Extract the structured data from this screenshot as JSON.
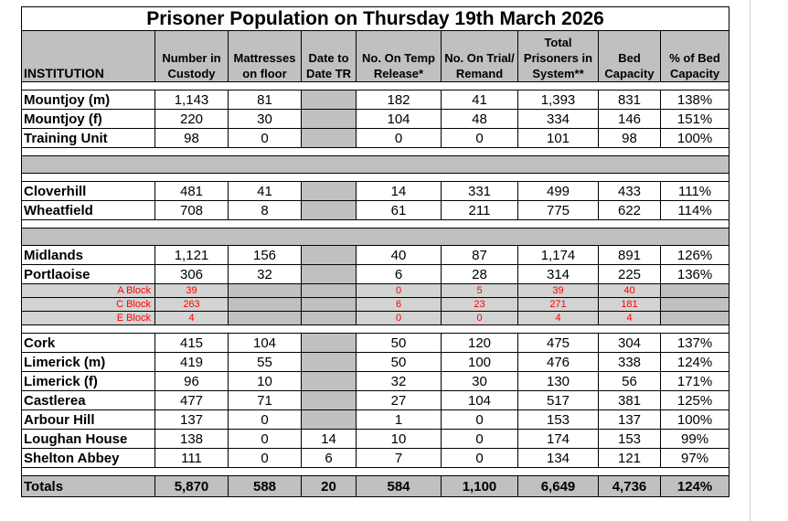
{
  "title": "Prisoner Population on Thursday 19th March 2026",
  "headers": {
    "institution": "INSTITUTION",
    "custody": [
      "Number in",
      "Custody"
    ],
    "mattresses": [
      "Mattresses",
      "on floor"
    ],
    "date_tr": [
      "Date to",
      "Date TR"
    ],
    "temp_release": [
      "No. On Temp",
      "Release*"
    ],
    "trial": [
      "No. On Trial/",
      "Remand"
    ],
    "total": [
      "Total",
      "Prisoners in",
      "System**"
    ],
    "bed": [
      "Bed",
      "Capacity"
    ],
    "pct": [
      "% of Bed",
      "Capacity"
    ]
  },
  "group1": [
    {
      "name": "Mountjoy (m)",
      "custody": "1,143",
      "mattresses": "81",
      "date_tr": "",
      "temp": "182",
      "trial": "41",
      "total": "1,393",
      "bed": "831",
      "pct": "138%"
    },
    {
      "name": "Mountjoy (f)",
      "custody": "220",
      "mattresses": "30",
      "date_tr": "",
      "temp": "104",
      "trial": "48",
      "total": "334",
      "bed": "146",
      "pct": "151%"
    },
    {
      "name": "Training Unit",
      "custody": "98",
      "mattresses": "0",
      "date_tr": "",
      "temp": "0",
      "trial": "0",
      "total": "101",
      "bed": "98",
      "pct": "100%"
    }
  ],
  "group2": [
    {
      "name": "Cloverhill",
      "custody": "481",
      "mattresses": "41",
      "date_tr": "",
      "temp": "14",
      "trial": "331",
      "total": "499",
      "bed": "433",
      "pct": "111%"
    },
    {
      "name": "Wheatfield",
      "custody": "708",
      "mattresses": "8",
      "date_tr": "",
      "temp": "61",
      "trial": "211",
      "total": "775",
      "bed": "622",
      "pct": "114%"
    }
  ],
  "group3": [
    {
      "name": "Midlands",
      "custody": "1,121",
      "mattresses": "156",
      "date_tr": "",
      "temp": "40",
      "trial": "87",
      "total": "1,174",
      "bed": "891",
      "pct": "126%"
    },
    {
      "name": "Portlaoise",
      "custody": "306",
      "mattresses": "32",
      "date_tr": "",
      "temp": "6",
      "trial": "28",
      "total": "314",
      "bed": "225",
      "pct": "136%"
    }
  ],
  "blocks": [
    {
      "name": "A Block",
      "custody": "39",
      "temp": "0",
      "trial": "5",
      "total": "39",
      "bed": "40"
    },
    {
      "name": "C Block",
      "custody": "263",
      "temp": "6",
      "trial": "23",
      "total": "271",
      "bed": "181"
    },
    {
      "name": "E Block",
      "custody": "4",
      "temp": "0",
      "trial": "0",
      "total": "4",
      "bed": "4"
    }
  ],
  "group4": [
    {
      "name": "Cork",
      "custody": "415",
      "mattresses": "104",
      "date_tr": "",
      "temp": "50",
      "trial": "120",
      "total": "475",
      "bed": "304",
      "pct": "137%"
    },
    {
      "name": "Limerick (m)",
      "custody": "419",
      "mattresses": "55",
      "date_tr": "",
      "temp": "50",
      "trial": "100",
      "total": "476",
      "bed": "338",
      "pct": "124%"
    },
    {
      "name": "Limerick (f)",
      "custody": "96",
      "mattresses": "10",
      "date_tr": "",
      "temp": "32",
      "trial": "30",
      "total": "130",
      "bed": "56",
      "pct": "171%"
    },
    {
      "name": "Castlerea",
      "custody": "477",
      "mattresses": "71",
      "date_tr": "",
      "temp": "27",
      "trial": "104",
      "total": "517",
      "bed": "381",
      "pct": "125%"
    },
    {
      "name": "Arbour Hill",
      "custody": "137",
      "mattresses": "0",
      "date_tr": "",
      "temp": "1",
      "trial": "0",
      "total": "153",
      "bed": "137",
      "pct": "100%"
    },
    {
      "name": "Loughan House",
      "custody": "138",
      "mattresses": "0",
      "date_tr": "14",
      "temp": "10",
      "trial": "0",
      "total": "174",
      "bed": "153",
      "pct": "99%"
    },
    {
      "name": "Shelton Abbey",
      "custody": "111",
      "mattresses": "0",
      "date_tr": "6",
      "temp": "7",
      "trial": "0",
      "total": "134",
      "bed": "121",
      "pct": "97%"
    }
  ],
  "totals": {
    "name": "Totals",
    "custody": "5,870",
    "mattresses": "588",
    "date_tr": "20",
    "temp": "584",
    "trial": "1,100",
    "total": "6,649",
    "bed": "4,736",
    "pct": "124%"
  },
  "colors": {
    "header_bg": "#c0c0c0",
    "block_text": "#ff0000",
    "block_bg": "#d3d3d3"
  }
}
